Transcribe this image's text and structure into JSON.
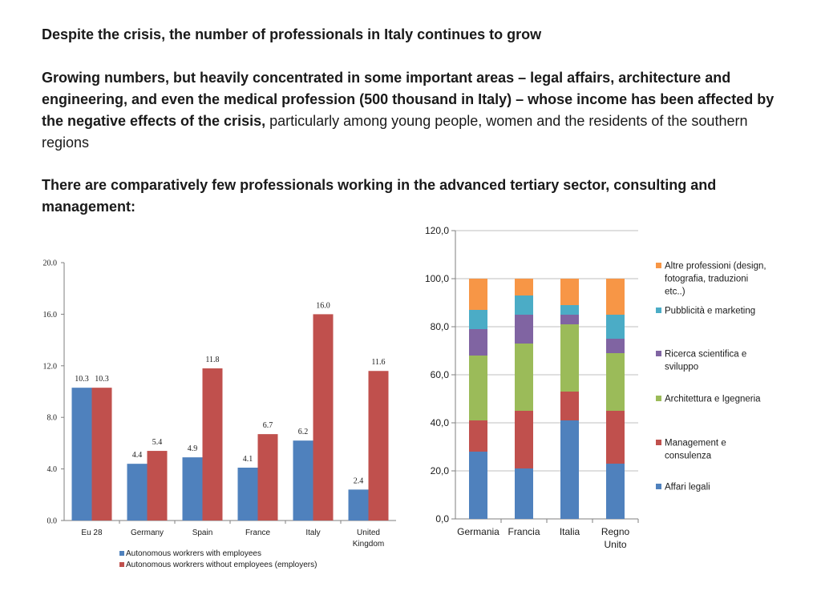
{
  "text": {
    "heading": "Despite the crisis, the number of professionals in Italy continues to grow",
    "para1_bold": "Growing numbers, but heavily concentrated in some important areas – legal affairs, architecture and engineering, and even the medical profession (500 thousand in Italy) – whose income has been affected by the negative effects of the crisis,",
    "para1_regular": " particularly among young people, women and the residents of the southern regions",
    "para2": "There are comparatively few professionals working in the advanced tertiary sector, consulting and management:"
  },
  "colors": {
    "blue": "#4f81bd",
    "red": "#c0504d",
    "green": "#9bbb59",
    "purple": "#8064a2",
    "teal": "#4bacc6",
    "orange": "#f79646"
  },
  "chart_data": [
    {
      "type": "bar",
      "title": "",
      "categories": [
        "Eu 28",
        "Germany",
        "Spain",
        "France",
        "Italy",
        "United Kingdom"
      ],
      "category_lines": [
        [
          "Eu 28"
        ],
        [
          "Germany"
        ],
        [
          "Spain"
        ],
        [
          "France"
        ],
        [
          "Italy"
        ],
        [
          "United",
          "Kingdom"
        ]
      ],
      "series": [
        {
          "name": "Autonomous workrers with employees",
          "values": [
            10.3,
            4.4,
            4.9,
            4.1,
            6.2,
            2.4
          ],
          "labels": [
            "10.3",
            "4.4",
            "4.9",
            "4.1",
            "6.2",
            "2.4"
          ]
        },
        {
          "name": "Autonomous workrers without employees (employers)",
          "values": [
            10.3,
            5.4,
            11.8,
            6.7,
            16.0,
            11.6
          ],
          "labels": [
            "10.3",
            "5.4",
            "11.8",
            "6.7",
            "16.0",
            "11.6"
          ]
        }
      ],
      "ylim": [
        0,
        20
      ],
      "yticks": [
        "0.0",
        "4.0",
        "8.0",
        "12.0",
        "16.0",
        "20.0"
      ],
      "grid": false,
      "legend": "bottom"
    },
    {
      "type": "bar",
      "stacked": true,
      "title": "",
      "categories": [
        "Germania",
        "Francia",
        "Italia",
        "Regno Unito"
      ],
      "category_lines": [
        [
          "Germania"
        ],
        [
          "Francia"
        ],
        [
          "Italia"
        ],
        [
          "Regno",
          "Unito"
        ]
      ],
      "series": [
        {
          "name": "Affari legali",
          "label_lines": [
            "Affari legali"
          ],
          "values": [
            28,
            21,
            41,
            23
          ]
        },
        {
          "name": "Management e consulenza",
          "label_lines": [
            "Management e",
            "consulenza"
          ],
          "values": [
            13,
            24,
            12,
            22
          ]
        },
        {
          "name": "Architettura e Igegneria",
          "label_lines": [
            "Architettura e Igegneria"
          ],
          "values": [
            27,
            28,
            28,
            24
          ]
        },
        {
          "name": "Ricerca scientifica e sviluppo",
          "label_lines": [
            "Ricerca scientifica e",
            "sviluppo"
          ],
          "values": [
            11,
            12,
            4,
            6
          ]
        },
        {
          "name": "Pubblicità e marketing",
          "label_lines": [
            "Pubblicità e marketing"
          ],
          "values": [
            8,
            8,
            4,
            10
          ]
        },
        {
          "name": "Altre professioni (design, fotografia, traduzioni etc..)",
          "label_lines": [
            "Altre professioni (design,",
            "fotografia, traduzioni",
            "etc..)"
          ],
          "values": [
            13,
            7,
            11,
            15
          ]
        }
      ],
      "ylim": [
        0,
        120
      ],
      "yticks": [
        "0,0",
        "20,0",
        "40,0",
        "60,0",
        "80,0",
        "100,0",
        "120,0"
      ],
      "grid": true,
      "legend": "right"
    }
  ]
}
